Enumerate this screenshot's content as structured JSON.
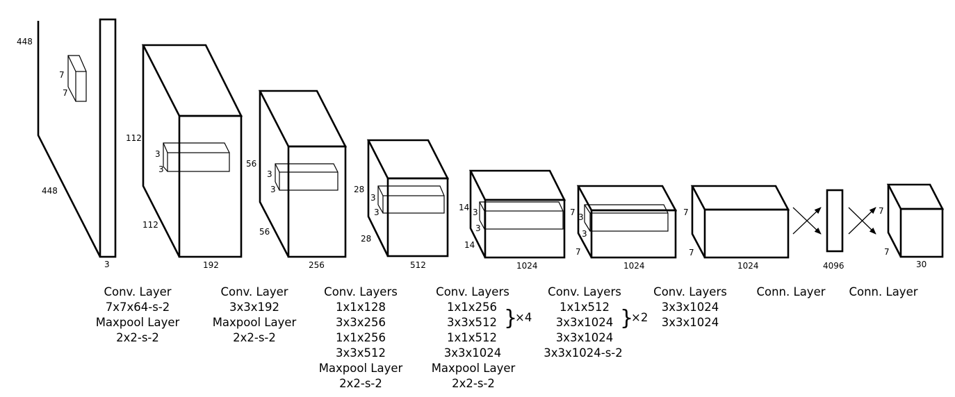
{
  "input": {
    "height": "448",
    "width": "448",
    "depth": "3",
    "kernel_h": "7",
    "kernel_w": "7"
  },
  "blocks": [
    {
      "h": "112",
      "w": "112",
      "d": "192",
      "k1": "3",
      "k2": "3"
    },
    {
      "h": "56",
      "w": "56",
      "d": "256",
      "k1": "3",
      "k2": "3"
    },
    {
      "h": "28",
      "w": "28",
      "d": "512",
      "k1": "3",
      "k2": "3"
    },
    {
      "h": "14",
      "w": "14",
      "d": "1024",
      "k1": "3",
      "k2": "3"
    },
    {
      "h": "7",
      "w": "7",
      "d": "1024",
      "k1": "3",
      "k2": "3"
    },
    {
      "h": "7",
      "w": "7",
      "d": "1024"
    }
  ],
  "fc": {
    "size": "4096"
  },
  "output": {
    "h": "7",
    "w": "7",
    "d": "30"
  },
  "captions": [
    [
      "Conv. Layer",
      "7x7x64-s-2",
      "Maxpool Layer",
      "2x2-s-2"
    ],
    [
      "Conv. Layer",
      "3x3x192",
      "Maxpool Layer",
      "2x2-s-2"
    ],
    [
      "Conv. Layers",
      "1x1x128",
      "3x3x256",
      "1x1x256",
      "3x3x512",
      "Maxpool Layer",
      "2x2-s-2"
    ],
    [
      "Conv. Layers",
      "1x1x256",
      "3x3x512",
      "1x1x512",
      "3x3x1024",
      "Maxpool Layer",
      "2x2-s-2"
    ],
    [
      "Conv. Layers",
      "1x1x512",
      "3x3x1024",
      "3x3x1024",
      "3x3x1024-s-2"
    ],
    [
      "Conv. Layers",
      "3x3x1024",
      "3x3x1024"
    ],
    [
      "Conn. Layer"
    ],
    [
      "Conn. Layer"
    ]
  ],
  "repeats": {
    "block4": "×4",
    "block5": "×2"
  }
}
